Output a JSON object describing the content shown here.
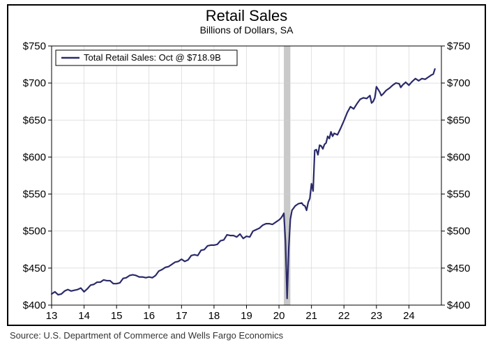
{
  "chart": {
    "type": "line",
    "title": "Retail Sales",
    "title_fontsize": 22,
    "title_color": "#000000",
    "subtitle": "Billions of Dollars, SA",
    "subtitle_fontsize": 14,
    "subtitle_color": "#000000",
    "source": "Source: U.S. Department of Commerce and Wells Fargo Economics",
    "source_fontsize": 13,
    "source_color": "#333333",
    "legend": {
      "text": "Total Retail Sales: Oct @ $718.9B",
      "line_color": "#2a2a6a",
      "border_color": "#000000",
      "background": "#ffffff",
      "fontsize": 13
    },
    "background_color": "#ffffff",
    "plot_border_color": "#000000",
    "grid_color": "#cfcfcf",
    "grid_width": 0.6,
    "shade_band": {
      "x_start": 20.15,
      "x_end": 20.35,
      "color": "#c9c9c9"
    },
    "x": {
      "min": 13,
      "max": 25,
      "ticks": [
        13,
        14,
        15,
        16,
        17,
        18,
        19,
        20,
        21,
        22,
        23,
        24
      ],
      "tick_labels": [
        "13",
        "14",
        "15",
        "16",
        "17",
        "18",
        "19",
        "20",
        "21",
        "22",
        "23",
        "24"
      ],
      "label_fontsize": 15,
      "label_color": "#000000"
    },
    "y": {
      "min": 400,
      "max": 750,
      "ticks": [
        400,
        450,
        500,
        550,
        600,
        650,
        700,
        750
      ],
      "tick_labels": [
        "$400",
        "$450",
        "$500",
        "$550",
        "$600",
        "$650",
        "$700",
        "$750"
      ],
      "label_fontsize": 15,
      "label_color": "#000000",
      "right_axis": true
    },
    "series": {
      "name": "Total Retail Sales",
      "color": "#2a2a6a",
      "line_width": 2.2,
      "points": [
        [
          13.0,
          415
        ],
        [
          13.1,
          418
        ],
        [
          13.2,
          414
        ],
        [
          13.3,
          415
        ],
        [
          13.4,
          419
        ],
        [
          13.5,
          421
        ],
        [
          13.6,
          419
        ],
        [
          13.7,
          420
        ],
        [
          13.8,
          421
        ],
        [
          13.9,
          423
        ],
        [
          14.0,
          418
        ],
        [
          14.1,
          422
        ],
        [
          14.2,
          427
        ],
        [
          14.3,
          428
        ],
        [
          14.4,
          431
        ],
        [
          14.5,
          431
        ],
        [
          14.6,
          434
        ],
        [
          14.7,
          433
        ],
        [
          14.8,
          433
        ],
        [
          14.9,
          429
        ],
        [
          15.0,
          429
        ],
        [
          15.1,
          430
        ],
        [
          15.2,
          436
        ],
        [
          15.3,
          437
        ],
        [
          15.4,
          440
        ],
        [
          15.5,
          441
        ],
        [
          15.6,
          440
        ],
        [
          15.7,
          438
        ],
        [
          15.8,
          438
        ],
        [
          15.9,
          437
        ],
        [
          16.0,
          438
        ],
        [
          16.1,
          437
        ],
        [
          16.2,
          440
        ],
        [
          16.3,
          446
        ],
        [
          16.4,
          448
        ],
        [
          16.5,
          451
        ],
        [
          16.6,
          452
        ],
        [
          16.7,
          455
        ],
        [
          16.8,
          458
        ],
        [
          16.9,
          459
        ],
        [
          17.0,
          462
        ],
        [
          17.1,
          459
        ],
        [
          17.2,
          461
        ],
        [
          17.3,
          467
        ],
        [
          17.4,
          468
        ],
        [
          17.5,
          467
        ],
        [
          17.6,
          474
        ],
        [
          17.7,
          475
        ],
        [
          17.8,
          480
        ],
        [
          17.9,
          481
        ],
        [
          18.0,
          481
        ],
        [
          18.1,
          482
        ],
        [
          18.2,
          487
        ],
        [
          18.3,
          488
        ],
        [
          18.4,
          495
        ],
        [
          18.5,
          494
        ],
        [
          18.6,
          494
        ],
        [
          18.7,
          492
        ],
        [
          18.8,
          496
        ],
        [
          18.9,
          490
        ],
        [
          19.0,
          493
        ],
        [
          19.1,
          492
        ],
        [
          19.2,
          500
        ],
        [
          19.3,
          502
        ],
        [
          19.4,
          504
        ],
        [
          19.5,
          508
        ],
        [
          19.6,
          510
        ],
        [
          19.7,
          510
        ],
        [
          19.8,
          509
        ],
        [
          19.9,
          512
        ],
        [
          20.0,
          515
        ],
        [
          20.05,
          517
        ],
        [
          20.1,
          520
        ],
        [
          20.15,
          524
        ],
        [
          20.2,
          485
        ],
        [
          20.25,
          409
        ],
        [
          20.3,
          477
        ],
        [
          20.35,
          516
        ],
        [
          20.4,
          528
        ],
        [
          20.45,
          531
        ],
        [
          20.5,
          534
        ],
        [
          20.6,
          537
        ],
        [
          20.7,
          538
        ],
        [
          20.75,
          535
        ],
        [
          20.8,
          534
        ],
        [
          20.85,
          528
        ],
        [
          20.9,
          539
        ],
        [
          20.95,
          544
        ],
        [
          21.0,
          564
        ],
        [
          21.05,
          554
        ],
        [
          21.1,
          609
        ],
        [
          21.15,
          610
        ],
        [
          21.2,
          603
        ],
        [
          21.25,
          616
        ],
        [
          21.3,
          615
        ],
        [
          21.35,
          611
        ],
        [
          21.4,
          617
        ],
        [
          21.45,
          619
        ],
        [
          21.5,
          628
        ],
        [
          21.55,
          625
        ],
        [
          21.6,
          634
        ],
        [
          21.65,
          628
        ],
        [
          21.7,
          632
        ],
        [
          21.8,
          630
        ],
        [
          21.9,
          639
        ],
        [
          22.0,
          649
        ],
        [
          22.1,
          660
        ],
        [
          22.2,
          668
        ],
        [
          22.3,
          665
        ],
        [
          22.4,
          672
        ],
        [
          22.5,
          678
        ],
        [
          22.6,
          680
        ],
        [
          22.7,
          679
        ],
        [
          22.8,
          683
        ],
        [
          22.85,
          673
        ],
        [
          22.9,
          675
        ],
        [
          22.95,
          680
        ],
        [
          23.0,
          695
        ],
        [
          23.1,
          688
        ],
        [
          23.15,
          683
        ],
        [
          23.2,
          685
        ],
        [
          23.3,
          690
        ],
        [
          23.4,
          693
        ],
        [
          23.5,
          697
        ],
        [
          23.6,
          700
        ],
        [
          23.7,
          699
        ],
        [
          23.75,
          694
        ],
        [
          23.8,
          697
        ],
        [
          23.9,
          701
        ],
        [
          24.0,
          697
        ],
        [
          24.1,
          702
        ],
        [
          24.2,
          706
        ],
        [
          24.3,
          703
        ],
        [
          24.4,
          706
        ],
        [
          24.5,
          705
        ],
        [
          24.6,
          708
        ],
        [
          24.7,
          711
        ],
        [
          24.75,
          712
        ],
        [
          24.8,
          718.9
        ]
      ]
    }
  }
}
